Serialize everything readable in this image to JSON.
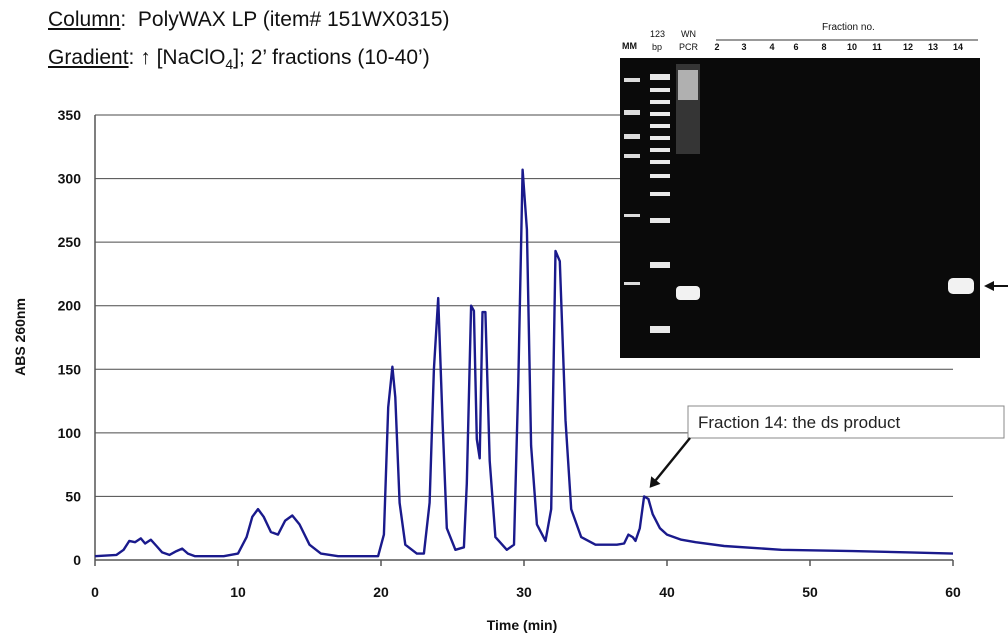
{
  "header": {
    "column_label": "Column",
    "column_value": "PolyWAX LP (item# 151WX0315)",
    "gradient_label": "Gradient",
    "gradient_arrow": "↑",
    "gradient_reagent_pre": "[NaClO",
    "gradient_reagent_sub": "4",
    "gradient_reagent_post": "]; 2’ fractions (10-40’)"
  },
  "chart_data": {
    "type": "line",
    "title": "",
    "xlabel": "Time (min)",
    "ylabel": "ABS 260nm",
    "xlim": [
      0,
      60
    ],
    "ylim": [
      0,
      350
    ],
    "x_ticks": [
      0,
      10,
      20,
      30,
      40,
      50,
      60
    ],
    "y_ticks": [
      0,
      50,
      100,
      150,
      200,
      250,
      300,
      350
    ],
    "grid": "horizontal",
    "line_color": "#1a1a8c",
    "series": [
      {
        "name": "",
        "points": [
          [
            0,
            3
          ],
          [
            1.5,
            4
          ],
          [
            2.0,
            8
          ],
          [
            2.4,
            15
          ],
          [
            2.8,
            14
          ],
          [
            3.2,
            17
          ],
          [
            3.5,
            13
          ],
          [
            3.9,
            16
          ],
          [
            4.3,
            11
          ],
          [
            4.7,
            6
          ],
          [
            5.2,
            4
          ],
          [
            5.7,
            7
          ],
          [
            6.1,
            9
          ],
          [
            6.5,
            5
          ],
          [
            7.0,
            3
          ],
          [
            9.0,
            3
          ],
          [
            10.0,
            5
          ],
          [
            10.6,
            18
          ],
          [
            11.0,
            34
          ],
          [
            11.4,
            40
          ],
          [
            11.8,
            34
          ],
          [
            12.3,
            22
          ],
          [
            12.8,
            20
          ],
          [
            13.3,
            31
          ],
          [
            13.8,
            35
          ],
          [
            14.3,
            28
          ],
          [
            15.0,
            12
          ],
          [
            15.8,
            5
          ],
          [
            17,
            3
          ],
          [
            19.8,
            3
          ],
          [
            20.2,
            20
          ],
          [
            20.5,
            120
          ],
          [
            20.8,
            152
          ],
          [
            21.0,
            128
          ],
          [
            21.3,
            45
          ],
          [
            21.7,
            12
          ],
          [
            22.5,
            5
          ],
          [
            23.0,
            5
          ],
          [
            23.4,
            45
          ],
          [
            23.7,
            150
          ],
          [
            24.0,
            206
          ],
          [
            24.3,
            110
          ],
          [
            24.6,
            25
          ],
          [
            25.2,
            8
          ],
          [
            25.8,
            10
          ],
          [
            26.0,
            60
          ],
          [
            26.3,
            200
          ],
          [
            26.5,
            196
          ],
          [
            26.7,
            95
          ],
          [
            26.9,
            80
          ],
          [
            27.1,
            195
          ],
          [
            27.3,
            195
          ],
          [
            27.6,
            78
          ],
          [
            28.0,
            18
          ],
          [
            28.8,
            8
          ],
          [
            29.3,
            12
          ],
          [
            29.6,
            140
          ],
          [
            29.9,
            307
          ],
          [
            30.2,
            260
          ],
          [
            30.5,
            90
          ],
          [
            30.9,
            28
          ],
          [
            31.5,
            15
          ],
          [
            31.9,
            40
          ],
          [
            32.2,
            243
          ],
          [
            32.5,
            235
          ],
          [
            32.9,
            110
          ],
          [
            33.3,
            40
          ],
          [
            34.0,
            18
          ],
          [
            35.0,
            12
          ],
          [
            36.5,
            12
          ],
          [
            37.0,
            13
          ],
          [
            37.3,
            20
          ],
          [
            37.6,
            18
          ],
          [
            37.8,
            15
          ],
          [
            38.1,
            25
          ],
          [
            38.4,
            50
          ],
          [
            38.7,
            48
          ],
          [
            39.0,
            36
          ],
          [
            39.5,
            25
          ],
          [
            40.0,
            20
          ],
          [
            41.0,
            16
          ],
          [
            42.0,
            14
          ],
          [
            44.0,
            11
          ],
          [
            48.0,
            8
          ],
          [
            53.0,
            7
          ],
          [
            57.0,
            6
          ],
          [
            60.0,
            5
          ]
        ]
      }
    ],
    "annotation": {
      "text": "Fraction 14: the ds product",
      "target": [
        38.5,
        52
      ]
    }
  },
  "gel": {
    "header_fraction": "Fraction no.",
    "lane_labels": [
      "MM",
      "123 bp",
      "WN PCR",
      "2",
      "3",
      "4",
      "6",
      "8",
      "10",
      "11",
      "12",
      "13",
      "14"
    ],
    "lane_label_mm": "MM",
    "lane_label_123_top": "123",
    "lane_label_123_bottom": "bp",
    "lane_label_wn_top": "WN",
    "lane_label_wn_bottom": "PCR",
    "fraction_lanes": [
      "2",
      "3",
      "4",
      "6",
      "8",
      "10",
      "11",
      "12",
      "13",
      "14"
    ]
  }
}
